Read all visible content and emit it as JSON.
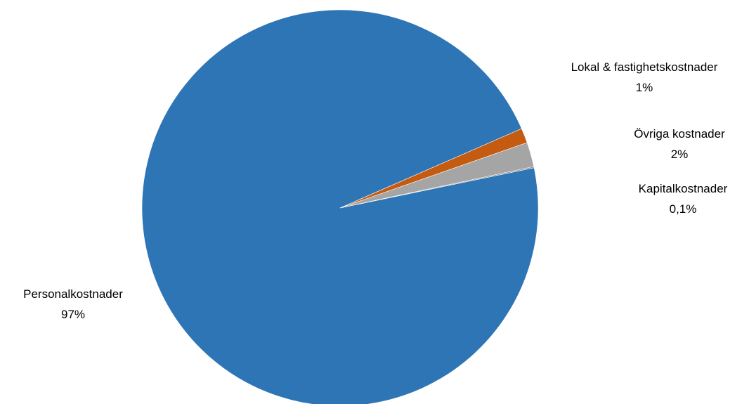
{
  "chart_data": {
    "type": "pie",
    "title": "",
    "slices": [
      {
        "label": "Personalkostnader",
        "value": 96.7,
        "display": "97%",
        "color": "#2E75B6"
      },
      {
        "label": "Lokal & fastighetskostnader",
        "value": 1.2,
        "display": "1%",
        "color": "#C55A11"
      },
      {
        "label": "Övriga kostnader",
        "value": 2.0,
        "display": "2%",
        "color": "#A5A5A5"
      },
      {
        "label": "Kapitalkostnader",
        "value": 0.1,
        "display": "0,1%",
        "color": "#7F7F7F"
      }
    ],
    "legend": "none",
    "data_labels": "outside"
  }
}
